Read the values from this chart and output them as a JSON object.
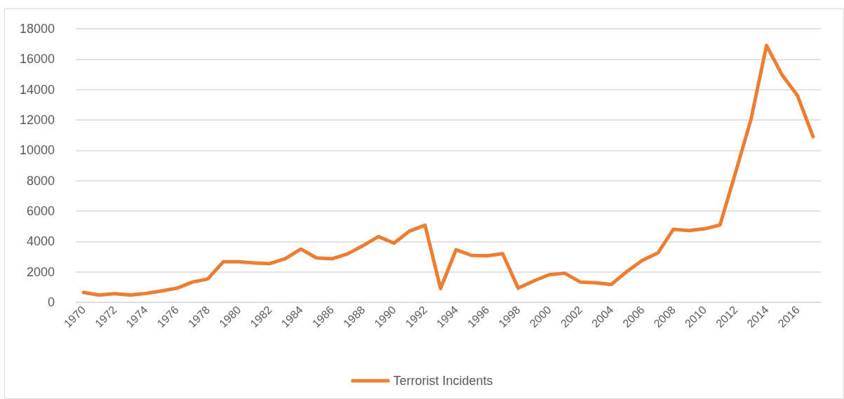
{
  "chart_data": {
    "type": "line",
    "categories": [
      "1970",
      null,
      "1972",
      null,
      "1974",
      null,
      "1976",
      null,
      "1978",
      null,
      "1980",
      null,
      "1982",
      null,
      "1984",
      null,
      "1986",
      null,
      "1988",
      null,
      "1990",
      null,
      "1992",
      null,
      "1994",
      null,
      "1996",
      null,
      "1998",
      null,
      "2000",
      null,
      "2002",
      null,
      "2004",
      null,
      "2006",
      null,
      "2008",
      null,
      "2010",
      null,
      "2012",
      null,
      "2014",
      null,
      "2016",
      null
    ],
    "series": [
      {
        "name": "Terrorist Incidents",
        "color": "#ed7d31",
        "values": [
          650,
          470,
          570,
          470,
          580,
          740,
          920,
          1320,
          1530,
          2660,
          2660,
          2590,
          2540,
          2870,
          3500,
          2920,
          2860,
          3180,
          3720,
          4320,
          3890,
          4680,
          5070,
          900,
          3460,
          3080,
          3060,
          3200,
          930,
          1400,
          1810,
          1910,
          1330,
          1280,
          1170,
          2020,
          2760,
          3240,
          4800,
          4720,
          4830,
          5080,
          8520,
          12040,
          16900,
          14960,
          13590,
          10900
        ]
      }
    ],
    "ylim": [
      0,
      18000
    ],
    "yticks": [
      0,
      2000,
      4000,
      6000,
      8000,
      10000,
      12000,
      14000,
      16000,
      18000
    ],
    "grid": "y",
    "legend": "bottom",
    "marker": "none",
    "line_style": "solid"
  }
}
